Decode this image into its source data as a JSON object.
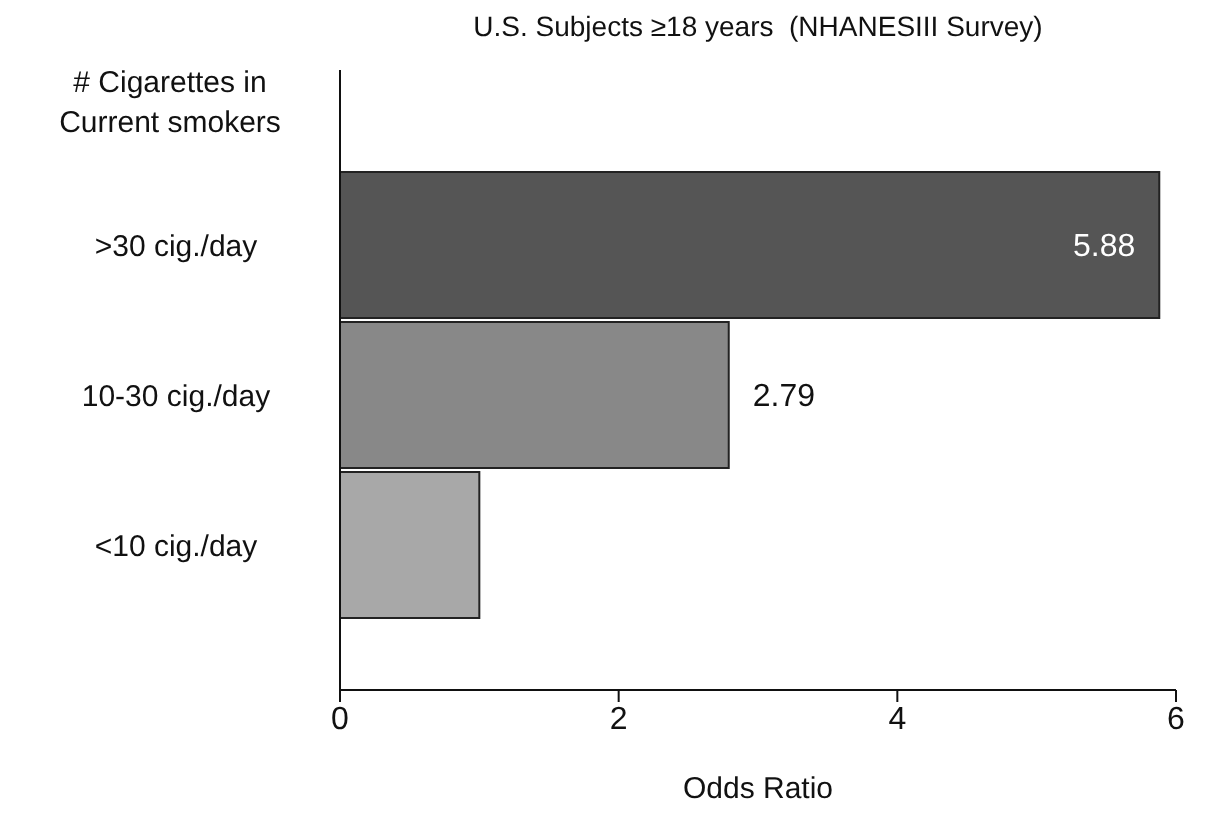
{
  "chart_data": {
    "type": "bar",
    "orientation": "horizontal",
    "title": "U.S. Subjects ≥18 years  (NHANESIII Survey)",
    "ylabel": "# Cigarettes in Current smokers",
    "xlabel": "Odds Ratio",
    "categories": [
      ">30 cig./day",
      "10-30 cig./day",
      "<10 cig./day"
    ],
    "values": [
      5.88,
      2.79,
      1.0
    ],
    "colors": [
      "#555555",
      "#888888",
      "#a8a8a8"
    ],
    "value_labels": [
      "5.88",
      "2.79",
      null
    ],
    "xlim": [
      0,
      6
    ],
    "xticks": [
      0,
      2,
      4,
      6
    ]
  }
}
